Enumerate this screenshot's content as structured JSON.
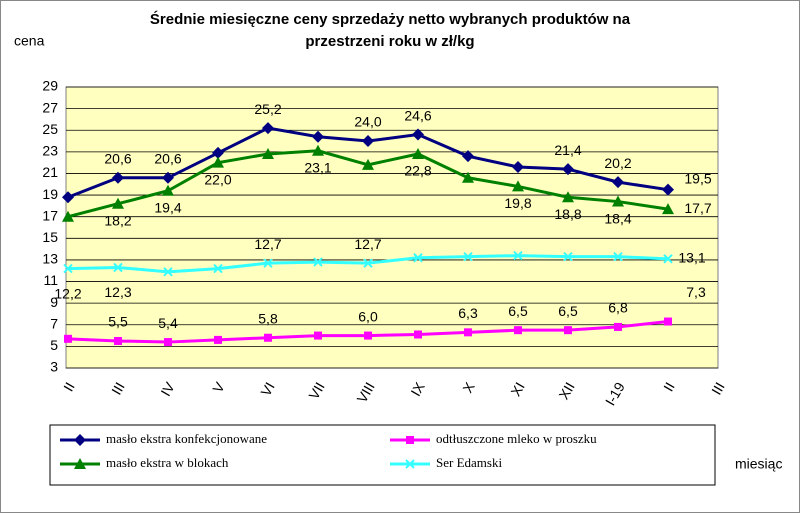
{
  "chart_data": {
    "type": "line",
    "title": [
      "Średnie miesięczne ceny sprzedaży netto  wybranych produktów na",
      "przestrzeni roku w zł/kg"
    ],
    "y_label": "cena",
    "x_label": "miesiąc",
    "categories": [
      "II",
      "III",
      "IV",
      "V",
      "VI",
      "VII",
      "VIII",
      "IX",
      "X",
      "XI",
      "XII",
      "I-19",
      "II",
      "III"
    ],
    "ylim": [
      3,
      29
    ],
    "yticks": [
      3,
      5,
      7,
      9,
      11,
      13,
      15,
      17,
      19,
      21,
      23,
      25,
      27,
      29
    ],
    "grid": true,
    "series": [
      {
        "name": "masło ekstra konfekcjonowane",
        "color": "#000080",
        "marker": "diamond",
        "values": [
          18.8,
          20.6,
          20.6,
          22.9,
          25.2,
          24.4,
          24.0,
          24.6,
          22.6,
          21.6,
          21.4,
          20.2,
          19.5,
          null
        ],
        "value_labels": [
          null,
          "20,6",
          "20,6",
          null,
          "25,2",
          null,
          "24,0",
          "24,6",
          null,
          null,
          "21,4",
          "20,2",
          "19,5",
          null
        ]
      },
      {
        "name": "odtłuszczone mleko w proszku",
        "color": "#FF00FF",
        "marker": "square",
        "values": [
          5.7,
          5.5,
          5.4,
          5.6,
          5.8,
          6.0,
          6.0,
          6.1,
          6.3,
          6.5,
          6.5,
          6.8,
          7.3,
          null
        ],
        "value_labels": [
          null,
          "5,5",
          "5,4",
          null,
          "5,8",
          null,
          "6,0",
          null,
          "6,3",
          "6,5",
          "6,5",
          "6,8",
          "7,3",
          null
        ]
      },
      {
        "name": "masło ekstra w blokach",
        "color": "#008000",
        "marker": "triangle",
        "values": [
          17.0,
          18.2,
          19.4,
          22.0,
          22.8,
          23.1,
          21.8,
          22.8,
          20.6,
          19.8,
          18.8,
          18.4,
          17.7,
          null
        ],
        "value_labels": [
          null,
          "18,2",
          "19,4",
          "22,0",
          null,
          "23,1",
          null,
          "22,8",
          null,
          "19,8",
          "18,8",
          "18,4",
          "17,7",
          null
        ]
      },
      {
        "name": "Ser Edamski",
        "color": "#33FFFF",
        "marker": "x",
        "values": [
          12.2,
          12.3,
          11.9,
          12.2,
          12.7,
          12.8,
          12.7,
          13.2,
          13.3,
          13.4,
          13.3,
          13.3,
          13.1,
          null
        ],
        "value_labels": [
          "12,2",
          "12,3",
          null,
          null,
          "12,7",
          null,
          "12,7",
          null,
          null,
          null,
          null,
          null,
          "13,1",
          null
        ]
      }
    ]
  }
}
